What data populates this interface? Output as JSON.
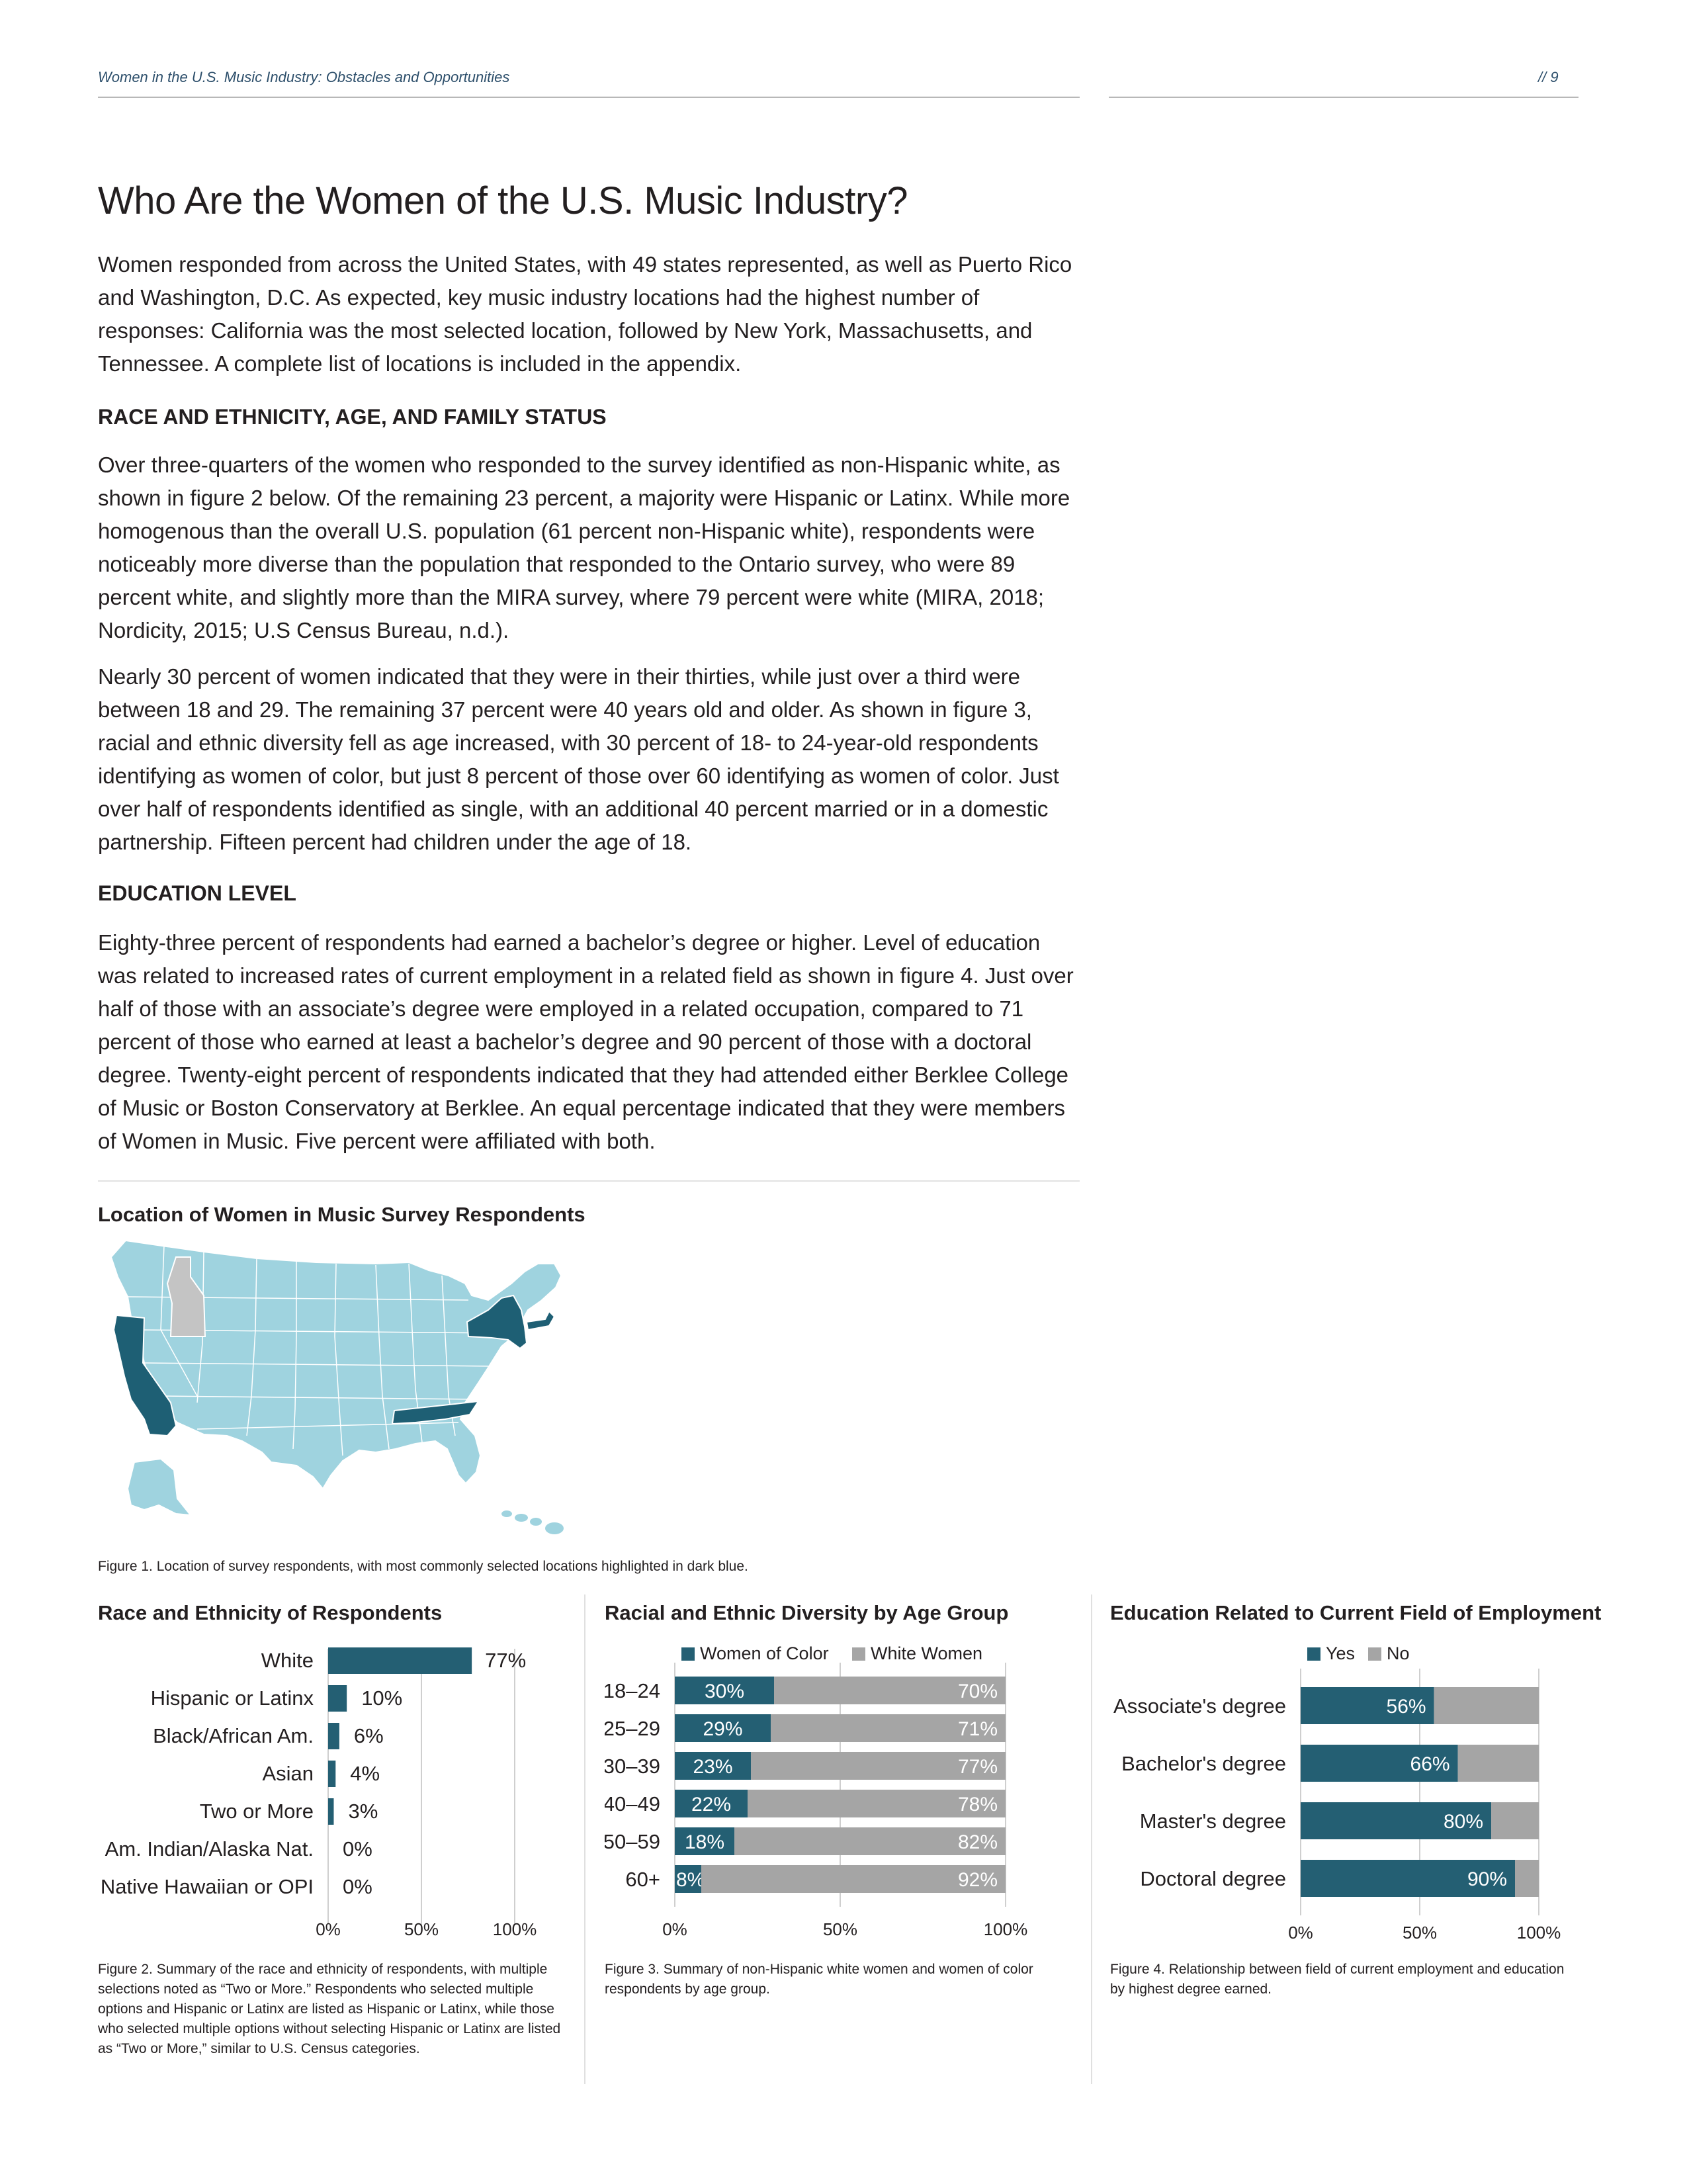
{
  "header": {
    "running_title": "Women in the U.S. Music Industry: Obstacles and Opportunities",
    "page_number": "// 9"
  },
  "main": {
    "title": "Who Are the Women of the U.S. Music Industry?",
    "intro": "Women responded from across the United States, with 49 states represented, as well as Puerto Rico and Washington, D.C. As expected, key music industry locations had the highest number of responses: California was the most selected location, followed by New York, Massachusetts, and Tennessee. A complete list of locations is included in the appendix.",
    "section1_heading": "RACE AND ETHNICITY, AGE, AND FAMILY STATUS",
    "section1_p1": "Over three-quarters of the women who responded to the survey identified as non-Hispanic white, as shown in figure 2 below. Of the remaining 23 percent, a majority were Hispanic or Latinx. While more homogenous than the overall U.S. population (61 percent non-Hispanic white), respondents were noticeably more diverse than the population that responded to the Ontario survey, who were 89 percent white, and slightly more than the MIRA survey, where 79 percent were white (MIRA, 2018; Nordicity, 2015; U.S Census Bureau, n.d.).",
    "section1_p2": "Nearly 30 percent of women indicated that they were in their thirties, while just over a third were between 18 and 29. The remaining 37 percent were 40 years old and older. As shown in figure 3, racial and ethnic diversity fell as age increased, with 30 percent of 18- to 24-year-old respondents identifying as women of color, but just 8 percent of those over 60 identifying as women of color. Just over half of respondents identified as single, with an additional 40 percent married or in a domestic partnership. Fifteen percent had children under the age of 18.",
    "section2_heading": "EDUCATION LEVEL",
    "section2_p1": "Eighty-three percent of respondents had earned a bachelor’s degree or higher. Level of education was related to increased rates of current employment in a related field as shown in figure 4. Just over half of those with an associate’s degree were employed in a related occupation, compared to 71 percent of those who earned at least a bachelor’s degree and 90 percent of those with a doctoral degree. Twenty-eight percent of respondents indicated that they had attended either Berklee College of Music or Boston Conservatory at Berklee. An equal percentage indicated that they were members of Women in Music. Five percent were affiliated with both."
  },
  "figure1": {
    "title": "Location of Women in Music Survey Respondents",
    "caption": "Figure 1. Location of survey respondents, with most commonly selected locations highlighted in dark blue.",
    "highlighted": [
      "California",
      "New York",
      "Massachusetts",
      "Tennessee"
    ],
    "not_represented": [
      "Idaho"
    ],
    "colors": {
      "highlight": "#1e5f74",
      "base": "#9fd3df",
      "none": "#c4c4c4"
    }
  },
  "colors": {
    "teal": "#245f73",
    "gray": "#a5a5a5",
    "axis_grid": "#cfcfcf"
  },
  "chart_data": [
    {
      "type": "bar",
      "orientation": "horizontal",
      "title": "Race and Ethnicity of Respondents",
      "categories": [
        "White",
        "Hispanic or Latinx",
        "Black/African Am.",
        "Asian",
        "Two or More",
        "Am. Indian/Alaska Nat.",
        "Native Hawaiian or OPI"
      ],
      "values": [
        77,
        10,
        6,
        4,
        3,
        0,
        0
      ],
      "value_labels": [
        "77%",
        "10%",
        "6%",
        "4%",
        "3%",
        "0%",
        "0%"
      ],
      "xlim": [
        0,
        100
      ],
      "x_ticks": [
        "0%",
        "50%",
        "100%"
      ],
      "caption": "Figure 2. Summary of the race and ethnicity of respondents, with multiple selections noted as “Two or More.” Respondents who selected multiple options and Hispanic or Latinx are listed as Hispanic or Latinx, while those who selected multiple options without selecting Hispanic or Latinx are listed as “Two or More,” similar to U.S. Census categories."
    },
    {
      "type": "bar",
      "orientation": "horizontal",
      "stacked": true,
      "title": "Racial and Ethnic Diversity by Age Group",
      "categories": [
        "18–24",
        "25–29",
        "30–39",
        "40–49",
        "50–59",
        "60+"
      ],
      "series": [
        {
          "name": "Women of Color",
          "values": [
            30,
            29,
            23,
            22,
            18,
            8
          ],
          "labels": [
            "30%",
            "29%",
            "23%",
            "22%",
            "18%",
            "8%"
          ]
        },
        {
          "name": "White Women",
          "values": [
            70,
            71,
            77,
            78,
            82,
            92
          ],
          "labels": [
            "70%",
            "71%",
            "77%",
            "78%",
            "82%",
            "92%"
          ]
        }
      ],
      "xlim": [
        0,
        100
      ],
      "x_ticks": [
        "0%",
        "50%",
        "100%"
      ],
      "legend": "top",
      "caption": "Figure 3. Summary of non-Hispanic white women and women of color respondents by age group."
    },
    {
      "type": "bar",
      "orientation": "horizontal",
      "stacked": true,
      "title": "Education Related to Current Field of Employment",
      "categories": [
        "Associate's degree",
        "Bachelor's degree",
        "Master's degree",
        "Doctoral degree"
      ],
      "series": [
        {
          "name": "Yes",
          "values": [
            56,
            66,
            80,
            90
          ],
          "labels": [
            "56%",
            "66%",
            "80%",
            "90%"
          ]
        },
        {
          "name": "No",
          "values": [
            44,
            34,
            20,
            10
          ]
        }
      ],
      "xlim": [
        0,
        100
      ],
      "x_ticks": [
        "0%",
        "50%",
        "100%"
      ],
      "legend": "top",
      "caption": "Figure 4. Relationship between field of current employment and education by highest degree earned."
    }
  ]
}
